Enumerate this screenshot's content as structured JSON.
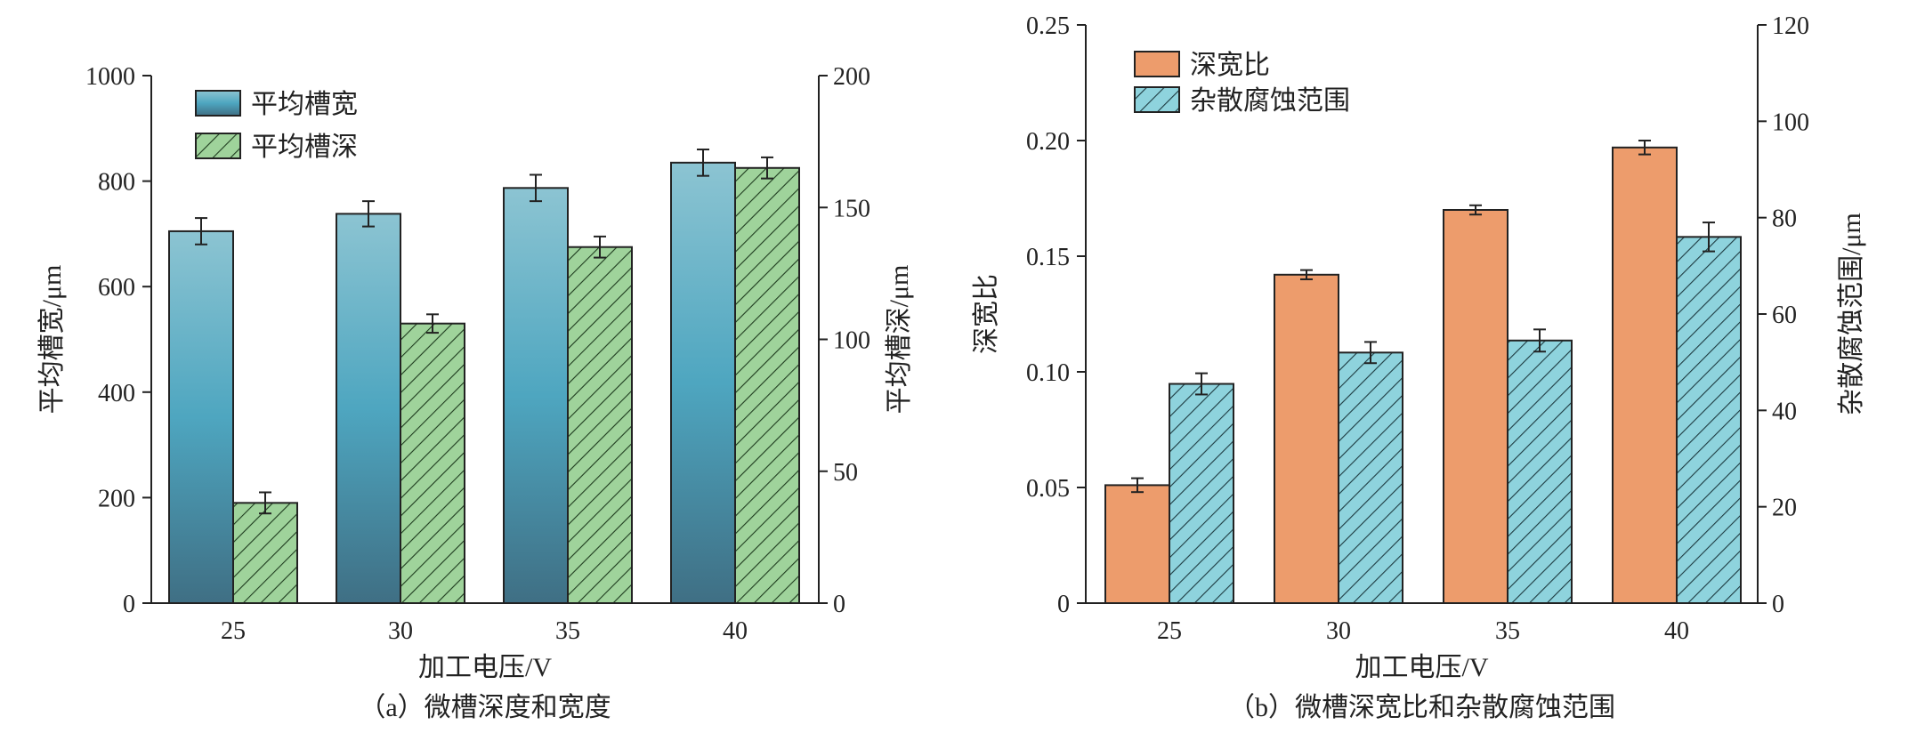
{
  "colors": {
    "width_bar_top": "#8cc4d2",
    "width_bar_mid": "#4ea6c0",
    "width_bar_bottom": "#3f6f84",
    "depth_bar": "#9fd39b",
    "ratio_bar": "#ed9c6c",
    "stray_bar": "#8ed3dd",
    "axis": "#222222"
  },
  "chart_data": [
    {
      "type": "bar",
      "caption": "（a）微槽深度和宽度",
      "xlabel": "加工电压/V",
      "categories": [
        "25",
        "30",
        "35",
        "40"
      ],
      "y_left": {
        "label": "平均槽宽/μm",
        "ylim": [
          0,
          1000
        ],
        "ticks": [
          "0",
          "200",
          "400",
          "600",
          "800",
          "1000"
        ]
      },
      "y_right": {
        "label": "平均槽深/μm",
        "ylim": [
          0,
          200
        ],
        "ticks": [
          "0",
          "50",
          "100",
          "150",
          "200"
        ]
      },
      "legend_position": "top-left",
      "series": [
        {
          "name": "平均槽宽",
          "axis": "left",
          "values": [
            705,
            738,
            787,
            835
          ],
          "errors": [
            25,
            24,
            25,
            25
          ],
          "fill": "gradient"
        },
        {
          "name": "平均槽深",
          "axis": "right",
          "values": [
            38,
            106,
            135,
            165
          ],
          "errors": [
            4,
            3.5,
            4,
            4
          ],
          "fill": "hatch"
        }
      ]
    },
    {
      "type": "bar",
      "caption": "（b）微槽深宽比和杂散腐蚀范围",
      "xlabel": "加工电压/V",
      "categories": [
        "25",
        "30",
        "35",
        "40"
      ],
      "y_left": {
        "label": "深宽比",
        "ylim": [
          0,
          0.25
        ],
        "ticks": [
          "0",
          "0.05",
          "0.10",
          "0.15",
          "0.20",
          "0.25"
        ]
      },
      "y_right": {
        "label": "杂散腐蚀范围/μm",
        "ylim": [
          0,
          120
        ],
        "ticks": [
          "0",
          "20",
          "40",
          "60",
          "80",
          "100",
          "120"
        ]
      },
      "legend_position": "top-left",
      "series": [
        {
          "name": "深宽比",
          "axis": "left",
          "values": [
            0.051,
            0.142,
            0.17,
            0.197
          ],
          "errors": [
            0.003,
            0.002,
            0.002,
            0.003
          ],
          "fill": "solid"
        },
        {
          "name": "杂散腐蚀范围",
          "axis": "right",
          "values": [
            45.5,
            52,
            54.5,
            76
          ],
          "errors": [
            2.2,
            2.2,
            2.3,
            3
          ],
          "fill": "hatch"
        }
      ]
    }
  ]
}
